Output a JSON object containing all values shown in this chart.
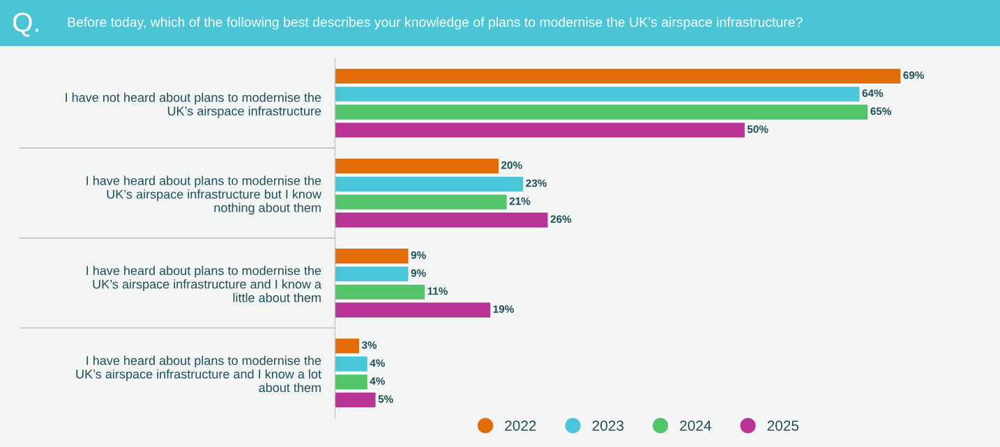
{
  "chart_data": {
    "type": "bar",
    "orientation": "horizontal",
    "title": "Before today, which of the following best describes your knowledge of plans to modernise the UK’s airspace infrastructure?",
    "annotations": [
      "Q."
    ],
    "categories": [
      "I have not heard about plans to modernise the\nUK’s airspace infrastructure",
      "I have heard about plans to modernise the\nUK’s airspace infrastructure but I know\nnothing about them",
      "I have heard about plans to modernise the\nUK’s airspace infrastructure and I know a\nlittle about them",
      "I have heard about plans to modernise the\nUK’s airspace infrastructure and I know a lot\nabout them"
    ],
    "series": [
      {
        "name": "2022",
        "color": "#e36c0a",
        "values": [
          69,
          20,
          9,
          3
        ],
        "value_labels": [
          "69%",
          "20%",
          "9%",
          "3%"
        ]
      },
      {
        "name": "2023",
        "color": "#4ac6d8",
        "values": [
          64,
          23,
          9,
          4
        ],
        "value_labels": [
          "64%",
          "23%",
          "9%",
          "4%"
        ]
      },
      {
        "name": "2024",
        "color": "#54c46a",
        "values": [
          65,
          21,
          11,
          4
        ],
        "value_labels": [
          "65%",
          "21%",
          "11%",
          "4%"
        ]
      },
      {
        "name": "2025",
        "color": "#b83596",
        "values": [
          50,
          26,
          19,
          5
        ],
        "value_labels": [
          "50%",
          "26%",
          "19%",
          "5%"
        ]
      }
    ],
    "legend": "bottom",
    "marker": "circle",
    "grid": false
  }
}
